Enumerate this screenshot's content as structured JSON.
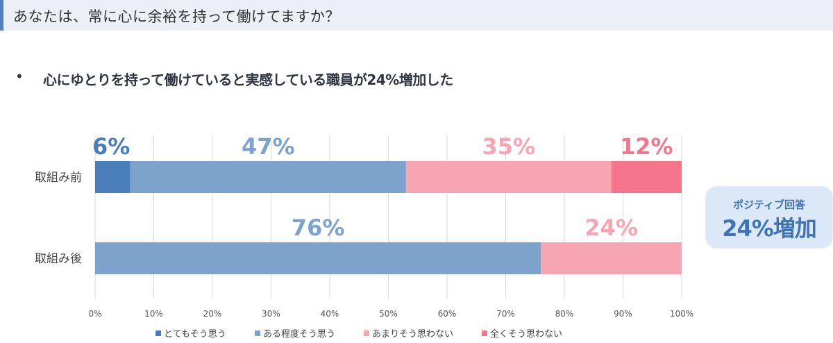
{
  "header": {
    "title": "あなたは、常に心に余裕を持って働けてますか？"
  },
  "bullet": {
    "symbol": "•",
    "text": "心にゆとりを持って働けていると実感している職員が24%増加した"
  },
  "callout": {
    "subtitle": "ポジティブ回答",
    "value": "24%増加"
  },
  "chart_data": {
    "type": "bar",
    "orientation": "horizontal",
    "stacked": true,
    "categories": [
      "取組み前",
      "取組み後"
    ],
    "xlim": [
      0,
      100
    ],
    "xticks": [
      "0%",
      "10%",
      "20%",
      "30%",
      "40%",
      "50%",
      "60%",
      "70%",
      "80%",
      "90%",
      "100%"
    ],
    "grid": "vertical",
    "legend_position": "bottom",
    "series": [
      {
        "name": "とてもそう思う",
        "color": "#4a7ebb",
        "values": [
          6,
          0
        ],
        "labels": [
          "6%",
          ""
        ]
      },
      {
        "name": "ある程度そう思う",
        "color": "#7da3cd",
        "values": [
          47,
          76
        ],
        "labels": [
          "47%",
          "76%"
        ]
      },
      {
        "name": "あまりそう思わない",
        "color": "#f8a5b3",
        "values": [
          35,
          24
        ],
        "labels": [
          "35%",
          "24%"
        ]
      },
      {
        "name": "全くそう思わない",
        "color": "#f4758c",
        "values": [
          12,
          0
        ],
        "labels": [
          "12%",
          ""
        ]
      }
    ]
  }
}
